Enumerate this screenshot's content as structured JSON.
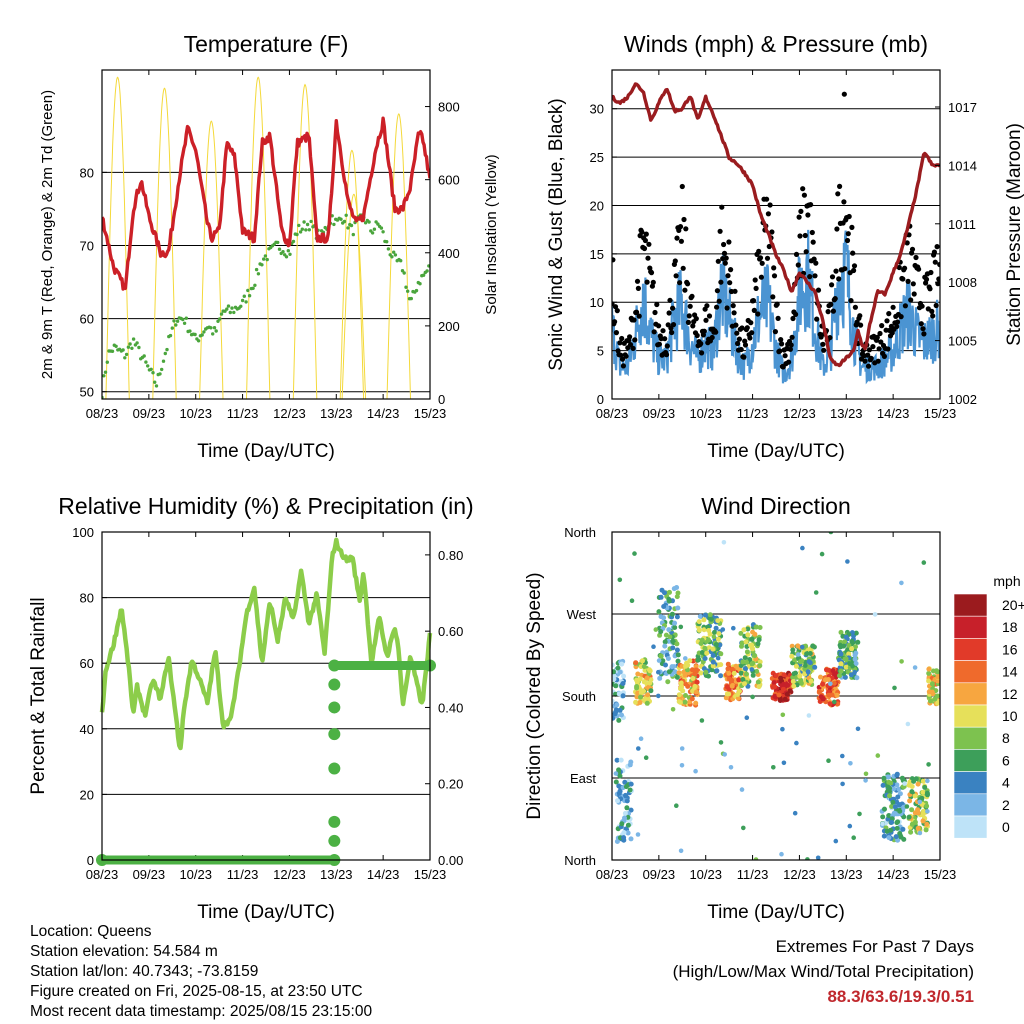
{
  "colors": {
    "temp": "#cc2027",
    "dewpoint": "#4aa53c",
    "solar": "#f4d93a",
    "gust": "#000000",
    "wind": "#4b94d2",
    "pressure": "#9a1c1f",
    "rh": "#8ccd4a",
    "precip": "#4cb144",
    "extremes": "#c0282d"
  },
  "chart_data": [
    {
      "type": "line",
      "title": "Temperature (F)",
      "xlabel": "Time (Day/UTC)",
      "ylabel": "2m & 9m T (Red, Orange) & 2m Td (Green)",
      "y2label": "Solar Insolation (Yellow)",
      "x_ticks": [
        "08/23",
        "09/23",
        "10/23",
        "11/23",
        "12/23",
        "13/23",
        "14/23",
        "15/23"
      ],
      "ylim": [
        49,
        94
      ],
      "y_ticks": [
        50,
        60,
        70,
        80
      ],
      "y2lim": [
        0,
        900
      ],
      "y2_ticks": [
        0,
        200,
        400,
        600,
        800
      ],
      "x_unit": "hours since 08/23",
      "series": [
        {
          "name": "2m T",
          "color": "#cc2027",
          "x": [
            0,
            6,
            12,
            16,
            20,
            24,
            30,
            34,
            40,
            44,
            48,
            54,
            56,
            60,
            64,
            68,
            72,
            78,
            82,
            86,
            92,
            96,
            100,
            106,
            110,
            116,
            120,
            126,
            130,
            134,
            140,
            144,
            150,
            154,
            158,
            162,
            164,
            168
          ],
          "y": [
            74,
            67,
            64,
            75,
            79,
            74,
            69,
            69,
            80,
            86,
            83,
            73,
            71,
            72,
            84,
            82,
            72,
            71,
            84,
            85,
            72,
            70,
            84,
            85,
            71,
            71,
            87,
            76,
            73,
            74,
            83,
            87,
            75,
            75,
            78,
            85,
            85,
            79
          ]
        },
        {
          "name": "2m Td",
          "color": "#4aa53c",
          "x": [
            0,
            3,
            6,
            12,
            16,
            20,
            24,
            28,
            32,
            38,
            42,
            48,
            54,
            58,
            62,
            66,
            72,
            78,
            82,
            86,
            90,
            96,
            100,
            106,
            112,
            118,
            120,
            124,
            128,
            134,
            138,
            142,
            146,
            150,
            154,
            158,
            162,
            168
          ],
          "y": [
            50,
            55,
            56,
            55,
            57,
            55,
            53,
            51,
            55,
            60,
            60,
            57,
            59,
            58,
            61,
            61,
            62,
            65,
            68,
            69,
            70,
            69,
            72,
            73,
            71,
            74,
            73,
            74,
            72,
            74,
            72,
            73,
            70,
            68,
            67,
            62,
            65,
            67
          ]
        }
      ],
      "solar_peaks": [
        {
          "x": 8,
          "y": 880
        },
        {
          "x": 32,
          "y": 850
        },
        {
          "x": 56,
          "y": 760
        },
        {
          "x": 80,
          "y": 880
        },
        {
          "x": 104,
          "y": 860
        },
        {
          "x": 128,
          "y": 680
        },
        {
          "x": 129,
          "y": 560
        },
        {
          "x": 152,
          "y": 780
        }
      ]
    },
    {
      "type": "line",
      "title": "Winds (mph) & Pressure (mb)",
      "xlabel": "Time (Day/UTC)",
      "ylabel": "Sonic Wind & Gust (Blue, Black)",
      "y2label": "Station Pressure (Maroon)",
      "x_ticks": [
        "08/23",
        "09/23",
        "10/23",
        "11/23",
        "12/23",
        "13/23",
        "14/23",
        "15/23"
      ],
      "ylim": [
        0,
        34
      ],
      "y_ticks": [
        0,
        5,
        10,
        15,
        20,
        25,
        30
      ],
      "y2lim": [
        1002,
        1018.9
      ],
      "y2_ticks": [
        1002,
        1005,
        1008,
        1011,
        1014,
        1017
      ],
      "series": [
        {
          "name": "Station Pressure",
          "color": "#9a1c1f",
          "x": [
            0,
            4,
            8,
            12,
            16,
            20,
            24,
            28,
            32,
            36,
            40,
            44,
            48,
            52,
            56,
            60,
            64,
            68,
            72,
            76,
            80,
            84,
            88,
            92,
            96,
            100,
            104,
            108,
            112,
            116,
            120,
            124,
            126,
            128,
            130,
            132,
            136,
            140,
            144,
            148,
            152,
            156,
            160,
            164,
            168
          ],
          "y": [
            1017.5,
            1017.2,
            1017.5,
            1018.2,
            1017.8,
            1016.3,
            1017.2,
            1018.0,
            1016.8,
            1016.9,
            1017.6,
            1016.3,
            1017.5,
            1016.6,
            1015.5,
            1014.4,
            1014.1,
            1013.6,
            1013.0,
            1011.5,
            1010.5,
            1009.4,
            1008.6,
            1007.5,
            1008.5,
            1008.0,
            1007.5,
            1006.0,
            1004.0,
            1003.7,
            1004.1,
            1004.5,
            1005.5,
            1004.8,
            1004.6,
            1005.8,
            1007.5,
            1007.4,
            1008.5,
            1009.5,
            1011.0,
            1012.7,
            1014.7,
            1014.0,
            1014.0
          ]
        }
      ],
      "wind_envelope_x": [
        0,
        4,
        8,
        12,
        16,
        20,
        24,
        28,
        32,
        36,
        40,
        44,
        48,
        52,
        56,
        60,
        64,
        68,
        72,
        76,
        80,
        84,
        88,
        92,
        96,
        100,
        104,
        108,
        112,
        116,
        120,
        124,
        128,
        132,
        136,
        140,
        144,
        148,
        152,
        156,
        160,
        164,
        168
      ],
      "wind_envelope_y": [
        9,
        4,
        4,
        8,
        13,
        8,
        5,
        5,
        10,
        12,
        7,
        5,
        7,
        6,
        14,
        10,
        6,
        4,
        7,
        11,
        12,
        6,
        3,
        5,
        13,
        16,
        9,
        4,
        6,
        15,
        16,
        8,
        4,
        4,
        4,
        5,
        6,
        9,
        11,
        8,
        7,
        8,
        9
      ],
      "gust_envelope_y": [
        15,
        6,
        6,
        11,
        20,
        14,
        8,
        8,
        14,
        21,
        12,
        7,
        10,
        8,
        20,
        16,
        9,
        6,
        11,
        17,
        23,
        11,
        5,
        8,
        19,
        24,
        15,
        7,
        10,
        22,
        25,
        14,
        6,
        6,
        7,
        8,
        10,
        14,
        18,
        14,
        12,
        14,
        16
      ],
      "gust_outlier": {
        "x": 119,
        "y": 31.5
      }
    },
    {
      "type": "line",
      "title": "Relative Humidity (%) & Precipitation (in)",
      "xlabel": "Time (Day/UTC)",
      "ylabel": "Percent & Total Rainfall",
      "x_ticks": [
        "08/23",
        "09/23",
        "10/23",
        "11/23",
        "12/23",
        "13/23",
        "14/23",
        "15/23"
      ],
      "ylim": [
        0,
        100
      ],
      "y_ticks": [
        0,
        20,
        40,
        60,
        80,
        100
      ],
      "y2lim": [
        0,
        0.86
      ],
      "y2_ticks": [
        "0.00",
        "0.20",
        "0.40",
        "0.60",
        "0.80"
      ],
      "series": [
        {
          "name": "RH",
          "color": "#8ccd4a",
          "x": [
            0,
            2,
            6,
            10,
            14,
            16,
            18,
            22,
            26,
            30,
            34,
            38,
            40,
            42,
            46,
            50,
            54,
            58,
            62,
            66,
            70,
            74,
            78,
            82,
            86,
            90,
            94,
            98,
            102,
            106,
            110,
            114,
            118,
            120,
            122,
            126,
            128,
            132,
            134,
            138,
            142,
            146,
            150,
            152,
            154,
            158,
            162,
            164,
            166,
            168
          ],
          "y": [
            45,
            58,
            66,
            77,
            57,
            44,
            53,
            44,
            55,
            49,
            62,
            43,
            33,
            46,
            61,
            55,
            48,
            64,
            41,
            43,
            58,
            75,
            83,
            60,
            79,
            67,
            80,
            73,
            88,
            72,
            81,
            63,
            93,
            97,
            94,
            91,
            93,
            79,
            88,
            60,
            74,
            62,
            71,
            64,
            47,
            62,
            52,
            47,
            58,
            69
          ]
        },
        {
          "name": "Precipitation",
          "color": "#4cb144",
          "steps": [
            {
              "x": 0,
              "y": 0
            },
            {
              "x": 119,
              "y": 0
            },
            {
              "x": 119,
              "y": 0.05
            },
            {
              "x": 119,
              "y": 0.1
            },
            {
              "x": 119,
              "y": 0.24
            },
            {
              "x": 119,
              "y": 0.33
            },
            {
              "x": 119,
              "y": 0.4
            },
            {
              "x": 119,
              "y": 0.46
            },
            {
              "x": 119,
              "y": 0.51
            },
            {
              "x": 168,
              "y": 0.51
            }
          ]
        }
      ]
    },
    {
      "type": "scatter",
      "title": "Wind Direction",
      "xlabel": "Time (Day/UTC)",
      "ylabel": "Direction (Colored By Speed)",
      "x_ticks": [
        "08/23",
        "09/23",
        "10/23",
        "11/23",
        "12/23",
        "13/23",
        "14/23",
        "15/23"
      ],
      "y_ticks": [
        "North",
        "East",
        "South",
        "West",
        "North"
      ],
      "ylim": [
        0,
        360
      ],
      "colorbar": {
        "title": "mph",
        "labels": [
          "20+",
          "18",
          "16",
          "14",
          "12",
          "10",
          "8",
          "6",
          "4",
          "2",
          "0"
        ],
        "colors": [
          "#9b1b1e",
          "#c7202a",
          "#e13a29",
          "#ef6a2c",
          "#f7a640",
          "#e6e05a",
          "#7dc24f",
          "#3d9f5a",
          "#3a82c1",
          "#7bb6e6",
          "#bee3f8"
        ]
      },
      "clusters": [
        {
          "x": [
            0,
            6
          ],
          "y": [
            150,
            220
          ],
          "speed": 3
        },
        {
          "x": [
            2,
            10
          ],
          "y": [
            20,
            110
          ],
          "speed": 3
        },
        {
          "x": [
            12,
            20
          ],
          "y": [
            170,
            220
          ],
          "speed": 10
        },
        {
          "x": [
            24,
            34
          ],
          "y": [
            195,
            300
          ],
          "speed": 5
        },
        {
          "x": [
            34,
            44
          ],
          "y": [
            170,
            220
          ],
          "speed": 12
        },
        {
          "x": [
            44,
            56
          ],
          "y": [
            200,
            270
          ],
          "speed": 7
        },
        {
          "x": [
            58,
            66
          ],
          "y": [
            175,
            215
          ],
          "speed": 13
        },
        {
          "x": [
            66,
            76
          ],
          "y": [
            190,
            260
          ],
          "speed": 8
        },
        {
          "x": [
            82,
            92
          ],
          "y": [
            175,
            205
          ],
          "speed": 17
        },
        {
          "x": [
            92,
            104
          ],
          "y": [
            190,
            235
          ],
          "speed": 8
        },
        {
          "x": [
            106,
            116
          ],
          "y": [
            170,
            210
          ],
          "speed": 15
        },
        {
          "x": [
            116,
            126
          ],
          "y": [
            200,
            250
          ],
          "speed": 6
        },
        {
          "x": [
            138,
            150
          ],
          "y": [
            20,
            95
          ],
          "speed": 4
        },
        {
          "x": [
            152,
            162
          ],
          "y": [
            30,
            90
          ],
          "speed": 9
        },
        {
          "x": [
            162,
            168
          ],
          "y": [
            170,
            210
          ],
          "speed": 10
        }
      ]
    }
  ],
  "footer": {
    "location": "Location: Queens",
    "elevation": "Station elevation: 54.584 m",
    "latlon": "Station lat/lon: 40.7343; -73.8159",
    "created": "Figure created on Fri, 2025-08-15, at 23:50 UTC",
    "recent": "Most recent data timestamp: 2025/08/15 23:15:00",
    "extremes_title": "Extremes For Past 7 Days",
    "extremes_sub": "(High/Low/Max Wind/Total Precipitation)",
    "extremes_values": "88.3/63.6/19.3/0.51"
  }
}
